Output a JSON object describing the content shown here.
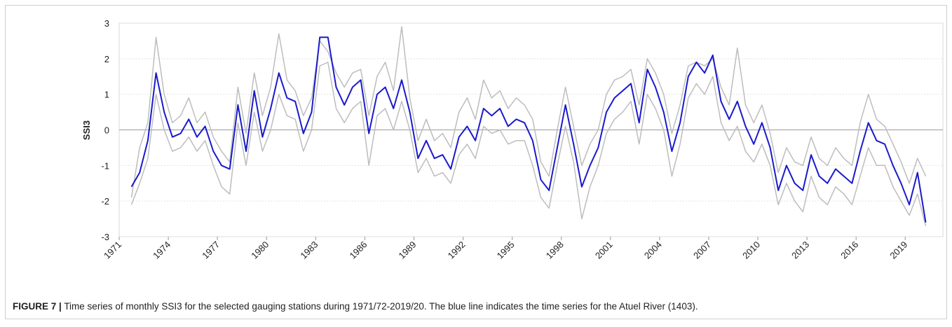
{
  "chart_data": {
    "type": "line",
    "y_label": "SSI3",
    "caption_label": "FIGURE 7 |",
    "caption": "Time series of monthly SSI3 for the selected gauging stations during 1971/72-2019/20. The blue line indicates the time series for the Atuel River (1403).",
    "x": [
      1971.75,
      1972.25,
      1972.75,
      1973.25,
      1973.75,
      1974.25,
      1974.75,
      1975.25,
      1975.75,
      1976.25,
      1976.75,
      1977.25,
      1977.75,
      1978.25,
      1978.75,
      1979.25,
      1979.75,
      1980.25,
      1980.75,
      1981.25,
      1981.75,
      1982.25,
      1982.75,
      1983.25,
      1983.75,
      1984.25,
      1984.75,
      1985.25,
      1985.75,
      1986.25,
      1986.75,
      1987.25,
      1987.75,
      1988.25,
      1988.75,
      1989.25,
      1989.75,
      1990.25,
      1990.75,
      1991.25,
      1991.75,
      1992.25,
      1992.75,
      1993.25,
      1993.75,
      1994.25,
      1994.75,
      1995.25,
      1995.75,
      1996.25,
      1996.75,
      1997.25,
      1997.75,
      1998.25,
      1998.75,
      1999.25,
      1999.75,
      2000.25,
      2000.75,
      2001.25,
      2001.75,
      2002.25,
      2002.75,
      2003.25,
      2003.75,
      2004.25,
      2004.75,
      2005.25,
      2005.75,
      2006.25,
      2006.75,
      2007.25,
      2007.75,
      2008.25,
      2008.75,
      2009.25,
      2009.75,
      2010.25,
      2010.75,
      2011.25,
      2011.75,
      2012.25,
      2012.75,
      2013.25,
      2013.75,
      2014.25,
      2014.75,
      2015.25,
      2015.75,
      2016.25,
      2016.75,
      2017.25,
      2017.75,
      2018.25,
      2018.75,
      2019.25,
      2019.75,
      2020.25
    ],
    "series": [
      {
        "color": "#bdbdbd",
        "values": [
          -1.9,
          -0.5,
          0.2,
          2.6,
          1.0,
          0.2,
          0.4,
          0.9,
          0.2,
          0.5,
          -0.2,
          -0.6,
          -0.9,
          1.2,
          -0.1,
          1.6,
          0.4,
          1.2,
          2.7,
          1.4,
          1.1,
          0.4,
          0.9,
          2.5,
          2.2,
          1.6,
          1.2,
          1.6,
          1.7,
          0.4,
          1.5,
          1.9,
          1.1,
          2.9,
          0.9,
          -0.3,
          0.3,
          -0.3,
          -0.1,
          -0.5,
          0.5,
          0.9,
          0.3,
          1.4,
          0.9,
          1.1,
          0.6,
          0.9,
          0.7,
          0.3,
          -0.9,
          -1.3,
          0.0,
          1.2,
          0.1,
          -1.0,
          -0.4,
          0.0,
          1.0,
          1.4,
          1.5,
          1.7,
          0.7,
          2.0,
          1.6,
          1.0,
          -0.1,
          0.7,
          1.8,
          1.9,
          1.8,
          2.0,
          1.2,
          0.7,
          2.3,
          0.7,
          0.2,
          0.7,
          -0.1,
          -1.2,
          -0.5,
          -0.9,
          -1.0,
          -0.2,
          -0.8,
          -1.0,
          -0.5,
          -0.8,
          -1.0,
          0.2,
          1.0,
          0.3,
          0.1,
          -0.4,
          -0.9,
          -1.5,
          -0.8,
          -1.3
        ]
      },
      {
        "color": "#bdbdbd",
        "values": [
          -2.1,
          -1.5,
          -0.8,
          1.0,
          0.0,
          -0.6,
          -0.5,
          -0.2,
          -0.6,
          -0.3,
          -1.0,
          -1.6,
          -1.8,
          0.2,
          -1.0,
          0.5,
          -0.6,
          0.0,
          1.0,
          0.4,
          0.3,
          -0.6,
          0.0,
          1.8,
          1.9,
          0.6,
          0.2,
          0.6,
          0.8,
          -1.0,
          0.4,
          0.6,
          0.0,
          0.8,
          0.0,
          -1.2,
          -0.8,
          -1.3,
          -1.2,
          -1.5,
          -0.7,
          -0.4,
          -0.8,
          0.1,
          -0.1,
          0.0,
          -0.4,
          -0.3,
          -0.3,
          -1.0,
          -1.9,
          -2.2,
          -1.0,
          0.1,
          -0.9,
          -2.5,
          -1.6,
          -1.0,
          -0.1,
          0.3,
          0.5,
          0.8,
          -0.4,
          1.0,
          0.6,
          0.0,
          -1.3,
          -0.4,
          0.9,
          1.3,
          1.0,
          1.5,
          0.2,
          -0.3,
          0.1,
          -0.6,
          -0.9,
          -0.4,
          -1.0,
          -2.1,
          -1.5,
          -2.0,
          -2.3,
          -1.3,
          -1.9,
          -2.1,
          -1.6,
          -1.8,
          -2.1,
          -1.3,
          -0.5,
          -1.0,
          -1.0,
          -1.6,
          -2.0,
          -2.4,
          -1.8,
          -2.7
        ]
      },
      {
        "color": "#1a1acc",
        "values": [
          -1.6,
          -1.2,
          -0.3,
          1.6,
          0.5,
          -0.2,
          -0.1,
          0.3,
          -0.2,
          0.1,
          -0.6,
          -1.0,
          -1.1,
          0.7,
          -0.6,
          1.1,
          -0.2,
          0.6,
          1.6,
          0.9,
          0.8,
          -0.1,
          0.5,
          2.6,
          2.6,
          1.2,
          0.7,
          1.2,
          1.4,
          -0.1,
          1.0,
          1.2,
          0.6,
          1.4,
          0.5,
          -0.8,
          -0.3,
          -0.8,
          -0.7,
          -1.1,
          -0.2,
          0.1,
          -0.3,
          0.6,
          0.4,
          0.6,
          0.1,
          0.3,
          0.2,
          -0.3,
          -1.4,
          -1.7,
          -0.5,
          0.7,
          -0.4,
          -1.6,
          -1.0,
          -0.5,
          0.5,
          0.9,
          1.1,
          1.3,
          0.2,
          1.7,
          1.2,
          0.5,
          -0.6,
          0.2,
          1.5,
          1.9,
          1.6,
          2.1,
          0.8,
          0.3,
          0.8,
          0.1,
          -0.4,
          0.2,
          -0.5,
          -1.7,
          -1.0,
          -1.5,
          -1.7,
          -0.7,
          -1.3,
          -1.5,
          -1.1,
          -1.3,
          -1.5,
          -0.6,
          0.2,
          -0.3,
          -0.4,
          -1.0,
          -1.5,
          -2.1,
          -1.2,
          -2.6
        ]
      }
    ],
    "xlim": [
      1971,
      2021.3
    ],
    "xticks": [
      1971,
      1974,
      1977,
      1980,
      1983,
      1986,
      1989,
      1992,
      1995,
      1998,
      2001,
      2004,
      2007,
      2010,
      2013,
      2016,
      2019
    ],
    "ylim": [
      -3,
      3
    ],
    "yticks": [
      -3,
      -2,
      -1,
      0,
      1,
      2,
      3
    ],
    "grid": true
  }
}
